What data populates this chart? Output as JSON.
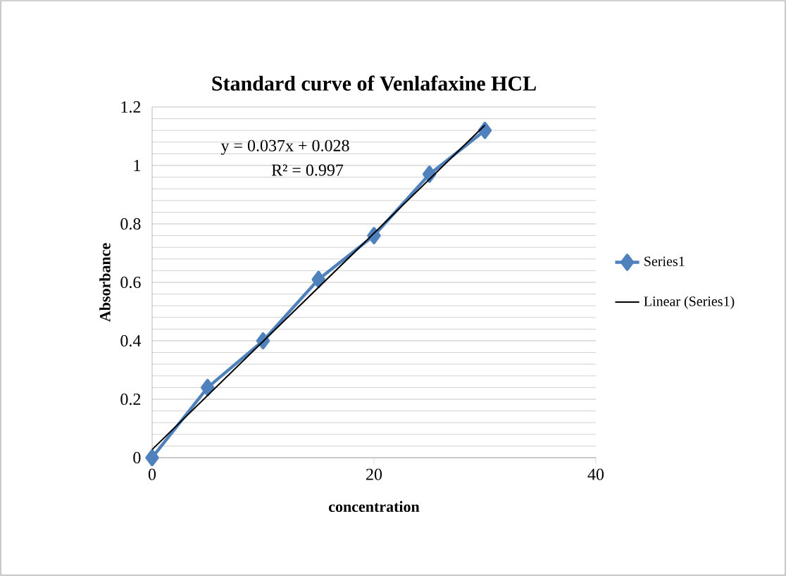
{
  "chart_data": {
    "type": "line",
    "title": "Standard curve of Venlafaxine HCL",
    "xlabel": "concentration",
    "ylabel": "Absorbance",
    "xlim": [
      0,
      40
    ],
    "xticks": [
      0,
      20,
      40
    ],
    "ylim": [
      0,
      1.2
    ],
    "yticks": [
      0,
      0.2,
      0.4,
      0.6,
      0.8,
      1,
      1.2
    ],
    "grid": "y",
    "legend": "right",
    "annotations": [
      "y = 0.037x + 0.028",
      "R² = 0.997"
    ],
    "series": [
      {
        "name": "Series1",
        "color": "#4f81bd",
        "x": [
          0,
          5,
          10,
          15,
          20,
          25,
          30
        ],
        "values": [
          0,
          0.24,
          0.4,
          0.61,
          0.76,
          0.97,
          1.12
        ],
        "marker": "diamond",
        "line_style": "solid"
      },
      {
        "name": "Linear (Series1)",
        "color": "#000000",
        "type": "line",
        "x": [
          0,
          30
        ],
        "values": [
          0.028,
          1.138
        ],
        "marker": "none",
        "line_style": "solid"
      }
    ]
  }
}
